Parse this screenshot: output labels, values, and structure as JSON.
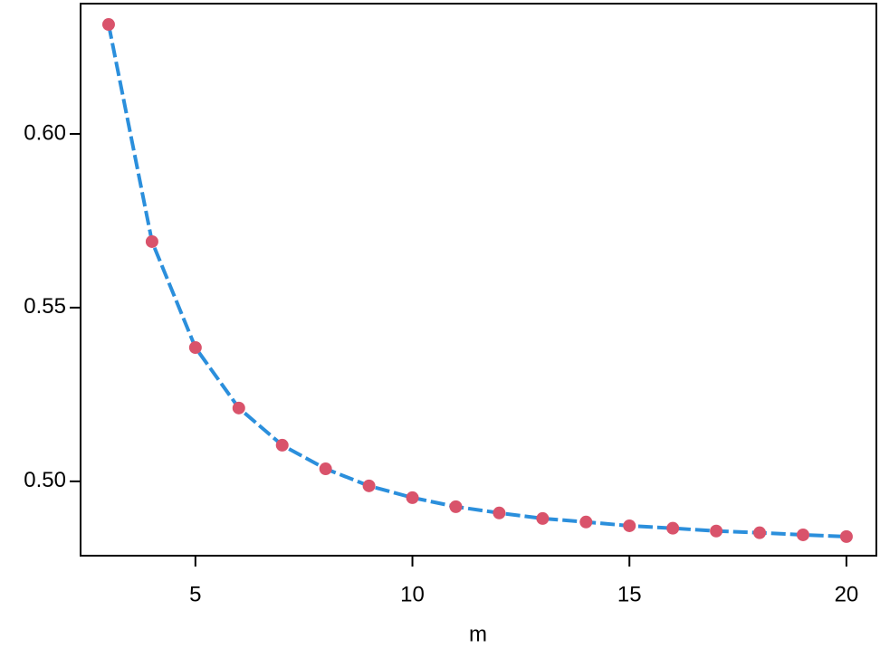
{
  "chart_data": {
    "type": "line",
    "xlabel": "m",
    "x": [
      3,
      4,
      5,
      6,
      7,
      8,
      9,
      10,
      11,
      12,
      13,
      14,
      15,
      16,
      17,
      18,
      19,
      20
    ],
    "series": [
      {
        "line_color": "#2b8fdc",
        "marker_color": "#d9536b",
        "line_style": "dashed",
        "values": [
          0.6315,
          0.569,
          0.5385,
          0.5211,
          0.5104,
          0.5036,
          0.4987,
          0.4953,
          0.4927,
          0.4909,
          0.4893,
          0.4883,
          0.4872,
          0.4865,
          0.4857,
          0.4852,
          0.4846,
          0.4841
        ]
      }
    ],
    "xlim": [
      2.354,
      20.69
    ],
    "xticks": [
      5,
      10,
      15,
      20
    ],
    "ylim": [
      0.4786,
      0.6375
    ],
    "yticks": [
      {
        "value": 0.5,
        "label": "0.50"
      },
      0.55,
      {
        "value": 0.6,
        "label": "0.60"
      }
    ],
    "grid": false
  }
}
